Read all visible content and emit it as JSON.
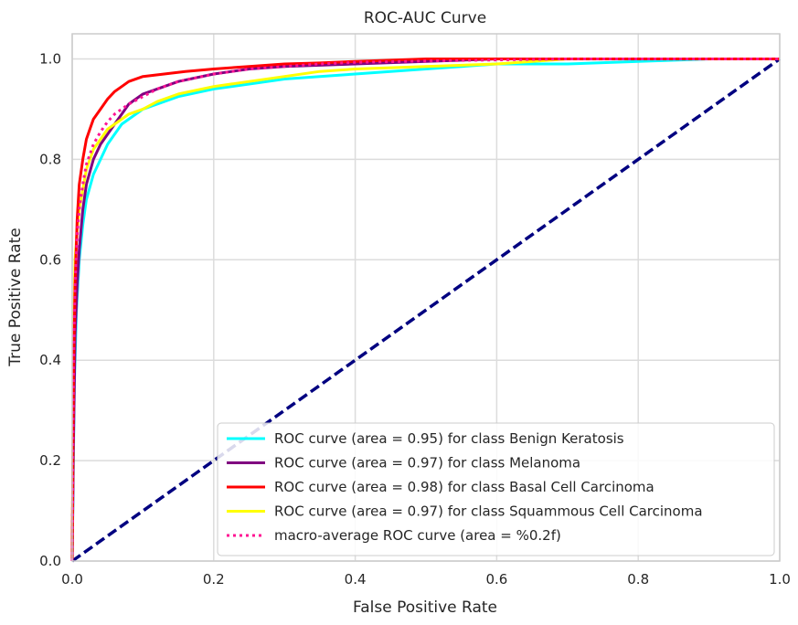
{
  "chart_data": {
    "type": "line",
    "title": "ROC-AUC Curve",
    "xlabel": "False Positive Rate",
    "ylabel": "True Positive Rate",
    "xlim": [
      0.0,
      1.0
    ],
    "ylim": [
      0.0,
      1.05
    ],
    "x_ticks": [
      0.0,
      0.2,
      0.4,
      0.6,
      0.8,
      1.0
    ],
    "y_ticks": [
      0.0,
      0.2,
      0.4,
      0.6,
      0.8,
      1.0
    ],
    "x_tick_labels": [
      "0.0",
      "0.2",
      "0.4",
      "0.6",
      "0.8",
      "1.0"
    ],
    "y_tick_labels": [
      "0.0",
      "0.2",
      "0.4",
      "0.6",
      "0.8",
      "1.0"
    ],
    "grid": true,
    "legend_position": "lower-right",
    "series": [
      {
        "name": "ROC curve (area = 0.95) for class Benign Keratosis",
        "color": "#00ffff",
        "style": "solid",
        "x": [
          0.0,
          0.003,
          0.006,
          0.01,
          0.015,
          0.02,
          0.03,
          0.04,
          0.05,
          0.06,
          0.07,
          0.08,
          0.1,
          0.12,
          0.15,
          0.2,
          0.25,
          0.3,
          0.35,
          0.4,
          0.5,
          0.6,
          0.7,
          0.8,
          0.9,
          1.0
        ],
        "y": [
          0.0,
          0.35,
          0.5,
          0.6,
          0.67,
          0.72,
          0.77,
          0.8,
          0.83,
          0.85,
          0.87,
          0.88,
          0.9,
          0.91,
          0.925,
          0.94,
          0.95,
          0.96,
          0.965,
          0.97,
          0.98,
          0.99,
          0.99,
          0.995,
          1.0,
          1.0
        ]
      },
      {
        "name": "ROC curve (area = 0.97) for class Melanoma",
        "color": "#800080",
        "style": "solid",
        "x": [
          0.0,
          0.002,
          0.004,
          0.007,
          0.01,
          0.015,
          0.02,
          0.03,
          0.04,
          0.05,
          0.06,
          0.07,
          0.08,
          0.1,
          0.12,
          0.15,
          0.2,
          0.25,
          0.3,
          0.4,
          0.5,
          0.6,
          0.7,
          1.0
        ],
        "y": [
          0.0,
          0.25,
          0.45,
          0.55,
          0.62,
          0.7,
          0.75,
          0.8,
          0.83,
          0.85,
          0.87,
          0.89,
          0.91,
          0.93,
          0.94,
          0.955,
          0.97,
          0.98,
          0.985,
          0.99,
          0.995,
          1.0,
          1.0,
          1.0
        ]
      },
      {
        "name": "ROC curve (area = 0.98) for class Basal Cell Carcinoma",
        "color": "#ff0000",
        "style": "solid",
        "x": [
          0.0,
          0.002,
          0.004,
          0.007,
          0.01,
          0.015,
          0.02,
          0.025,
          0.03,
          0.04,
          0.05,
          0.06,
          0.07,
          0.08,
          0.1,
          0.13,
          0.16,
          0.2,
          0.25,
          0.3,
          0.35,
          0.4,
          0.5,
          0.6,
          0.7,
          1.0
        ],
        "y": [
          0.0,
          0.38,
          0.55,
          0.68,
          0.75,
          0.8,
          0.84,
          0.86,
          0.88,
          0.9,
          0.92,
          0.935,
          0.945,
          0.955,
          0.965,
          0.97,
          0.975,
          0.98,
          0.985,
          0.99,
          0.992,
          0.995,
          1.0,
          1.0,
          1.0,
          1.0
        ]
      },
      {
        "name": "ROC curve (area = 0.97) for class Squammous Cell Carcinoma",
        "color": "#ffff00",
        "style": "solid",
        "x": [
          0.0,
          0.002,
          0.004,
          0.007,
          0.01,
          0.015,
          0.02,
          0.03,
          0.04,
          0.05,
          0.06,
          0.08,
          0.1,
          0.12,
          0.15,
          0.2,
          0.25,
          0.3,
          0.35,
          0.4,
          0.5,
          0.6,
          0.7,
          1.0
        ],
        "y": [
          0.0,
          0.45,
          0.6,
          0.66,
          0.7,
          0.74,
          0.78,
          0.82,
          0.84,
          0.86,
          0.87,
          0.89,
          0.9,
          0.915,
          0.93,
          0.945,
          0.955,
          0.965,
          0.975,
          0.98,
          0.985,
          0.99,
          1.0,
          1.0
        ]
      },
      {
        "name": "macro-average ROC curve (area = %0.2f)",
        "color": "#ff1493",
        "style": "dotted",
        "x": [
          0.0,
          0.002,
          0.004,
          0.007,
          0.01,
          0.015,
          0.02,
          0.03,
          0.04,
          0.05,
          0.06,
          0.08,
          0.1,
          0.12,
          0.15,
          0.2,
          0.25,
          0.3,
          0.35,
          0.4,
          0.5,
          0.6,
          0.7,
          0.8,
          1.0
        ],
        "y": [
          0.0,
          0.4,
          0.55,
          0.65,
          0.7,
          0.75,
          0.79,
          0.83,
          0.855,
          0.875,
          0.89,
          0.91,
          0.925,
          0.94,
          0.955,
          0.97,
          0.98,
          0.985,
          0.99,
          0.993,
          0.996,
          0.998,
          1.0,
          1.0,
          1.0
        ]
      },
      {
        "name": "",
        "color": "#000080",
        "style": "dashed",
        "x": [
          0.0,
          1.0
        ],
        "y": [
          0.0,
          1.0
        ]
      }
    ]
  }
}
